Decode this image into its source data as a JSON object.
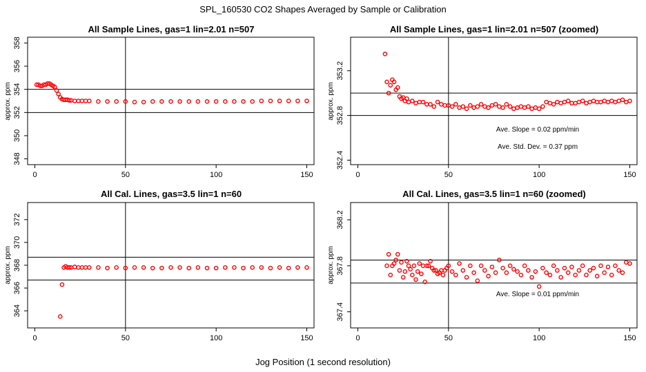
{
  "figure": {
    "title": "SPL_160530  CO2 Shapes Averaged by Sample or Calibration",
    "xlabel": "Jog Position (1 second resolution)"
  },
  "chart_data": [
    {
      "type": "scatter",
      "title": "All Sample Lines, gas=1 lin=2.01 n=507",
      "xlabel": "",
      "ylabel": "approx. ppm",
      "xlim": [
        -4,
        154
      ],
      "ylim": [
        347.5,
        358.5
      ],
      "xticks": [
        0,
        50,
        100,
        150
      ],
      "yticks": [
        348,
        350,
        352,
        354,
        356,
        358
      ],
      "vline": 50,
      "hlines": [
        354.0,
        352.0
      ],
      "annotations": [],
      "series": [
        {
          "color": "#ff0000",
          "x": [
            1,
            2,
            3,
            4,
            5,
            6,
            7,
            8,
            9,
            10,
            11,
            12,
            13,
            14,
            15,
            16,
            17,
            18,
            19,
            20,
            22,
            24,
            26,
            28,
            30,
            35,
            40,
            45,
            50,
            55,
            60,
            65,
            70,
            75,
            80,
            85,
            90,
            95,
            100,
            105,
            110,
            115,
            120,
            125,
            130,
            135,
            140,
            145,
            150
          ],
          "y": [
            354.4,
            354.4,
            354.3,
            354.3,
            354.4,
            354.4,
            354.5,
            354.5,
            354.4,
            354.3,
            354.2,
            353.9,
            353.6,
            353.3,
            353.15,
            353.1,
            353.1,
            353.1,
            353.05,
            353.05,
            353.0,
            353.0,
            353.0,
            353.0,
            353.0,
            352.95,
            352.95,
            352.95,
            352.95,
            352.9,
            352.9,
            352.95,
            352.95,
            352.95,
            352.95,
            352.95,
            352.95,
            352.95,
            352.95,
            352.95,
            352.95,
            352.95,
            352.95,
            353.0,
            353.0,
            353.0,
            353.0,
            353.0,
            353.0
          ]
        }
      ]
    },
    {
      "type": "scatter",
      "title": "All Sample Lines, gas=1 lin=2.01 n=507 (zoomed)",
      "xlabel": "",
      "ylabel": "approx. ppm",
      "xlim": [
        -4,
        154
      ],
      "ylim": [
        352.36,
        353.5
      ],
      "xticks": [
        0,
        50,
        100,
        150
      ],
      "yticks": [
        352.4,
        352.8,
        353.2
      ],
      "vline": 50,
      "hlines": [
        353.0,
        352.8
      ],
      "annotations": [
        "Ave. Slope =  0.02  ppm/min",
        "Ave. Std. Dev. =  0.37  ppm"
      ],
      "series": [
        {
          "color": "#ff0000",
          "x": [
            15,
            16,
            17,
            18,
            19,
            20,
            21,
            22,
            23,
            24,
            25,
            26,
            27,
            28,
            30,
            32,
            34,
            36,
            38,
            40,
            42,
            44,
            46,
            48,
            50,
            52,
            54,
            56,
            58,
            60,
            62,
            64,
            66,
            68,
            70,
            72,
            74,
            76,
            78,
            80,
            82,
            84,
            86,
            88,
            90,
            92,
            94,
            96,
            98,
            100,
            102,
            104,
            106,
            108,
            110,
            112,
            114,
            116,
            118,
            120,
            122,
            124,
            126,
            128,
            130,
            132,
            134,
            136,
            138,
            140,
            142,
            144,
            146,
            148,
            150
          ],
          "y": [
            353.35,
            353.1,
            353.0,
            353.07,
            353.12,
            353.1,
            353.03,
            353.05,
            352.97,
            352.95,
            352.96,
            352.93,
            352.95,
            352.92,
            352.93,
            352.91,
            352.92,
            352.92,
            352.9,
            352.9,
            352.88,
            352.92,
            352.9,
            352.89,
            352.89,
            352.88,
            352.9,
            352.87,
            352.88,
            352.86,
            352.89,
            352.87,
            352.88,
            352.9,
            352.88,
            352.87,
            352.89,
            352.9,
            352.88,
            352.87,
            352.9,
            352.88,
            352.86,
            352.87,
            352.88,
            352.87,
            352.88,
            352.86,
            352.87,
            352.86,
            352.88,
            352.92,
            352.91,
            352.9,
            352.92,
            352.91,
            352.92,
            352.93,
            352.91,
            352.91,
            352.92,
            352.93,
            352.91,
            352.92,
            352.93,
            352.92,
            352.92,
            352.93,
            352.92,
            352.93,
            352.92,
            352.93,
            352.94,
            352.92,
            352.93
          ]
        }
      ]
    },
    {
      "type": "scatter",
      "title": "All Cal. Lines, gas=3.5 lin=1 n=60",
      "xlabel": "",
      "ylabel": "approx. ppm",
      "xlim": [
        -4,
        154
      ],
      "ylim": [
        362.5,
        373.5
      ],
      "xticks": [
        0,
        50,
        100,
        150
      ],
      "yticks": [
        364,
        366,
        368,
        370,
        372
      ],
      "vline": 50,
      "hlines": [
        368.7,
        366.7
      ],
      "annotations": [],
      "series": [
        {
          "color": "#ff0000",
          "x": [
            14,
            15,
            16,
            17,
            18,
            19,
            20,
            22,
            24,
            26,
            28,
            30,
            35,
            40,
            45,
            50,
            55,
            60,
            65,
            70,
            75,
            80,
            85,
            90,
            95,
            100,
            105,
            110,
            115,
            120,
            125,
            130,
            135,
            140,
            145,
            150
          ],
          "y": [
            363.5,
            366.3,
            367.8,
            367.9,
            367.8,
            367.8,
            367.8,
            367.85,
            367.8,
            367.8,
            367.8,
            367.8,
            367.8,
            367.75,
            367.8,
            367.75,
            367.8,
            367.8,
            367.75,
            367.75,
            367.8,
            367.8,
            367.75,
            367.8,
            367.75,
            367.75,
            367.8,
            367.8,
            367.75,
            367.8,
            367.8,
            367.75,
            367.8,
            367.75,
            367.8,
            367.8
          ]
        }
      ]
    },
    {
      "type": "scatter",
      "title": "All Cal. Lines, gas=3.5 lin=1 n=60 (zoomed)",
      "xlabel": "",
      "ylabel": "approx. ppm",
      "xlim": [
        -4,
        154
      ],
      "ylim": [
        367.26,
        368.35
      ],
      "xticks": [
        0,
        50,
        100,
        150
      ],
      "yticks": [
        367.4,
        367.8,
        368.2
      ],
      "vline": 50,
      "hlines": [
        367.85,
        367.65
      ],
      "annotations": [
        "Ave. Slope =  0.01  ppm/min"
      ],
      "series": [
        {
          "color": "#ff0000",
          "x": [
            16,
            17,
            18,
            19,
            20,
            21,
            22,
            23,
            24,
            25,
            26,
            27,
            28,
            29,
            30,
            31,
            32,
            33,
            34,
            35,
            36,
            37,
            38,
            39,
            40,
            41,
            42,
            43,
            44,
            45,
            46,
            47,
            48,
            49,
            50,
            52,
            54,
            56,
            58,
            60,
            62,
            64,
            66,
            68,
            70,
            72,
            74,
            76,
            78,
            80,
            82,
            84,
            86,
            88,
            90,
            92,
            94,
            96,
            98,
            100,
            102,
            104,
            106,
            108,
            110,
            112,
            114,
            116,
            118,
            120,
            122,
            124,
            126,
            128,
            130,
            132,
            134,
            136,
            138,
            140,
            142,
            144,
            146,
            148,
            150
          ],
          "y": [
            367.8,
            367.9,
            367.72,
            367.8,
            367.82,
            367.85,
            367.9,
            367.76,
            367.83,
            367.7,
            367.75,
            367.84,
            367.8,
            367.77,
            367.72,
            367.8,
            367.68,
            367.75,
            367.82,
            367.73,
            367.8,
            367.66,
            367.8,
            367.8,
            367.84,
            367.78,
            367.76,
            367.76,
            367.73,
            367.74,
            367.76,
            367.72,
            367.76,
            367.78,
            367.8,
            367.75,
            367.72,
            367.82,
            367.76,
            367.7,
            367.8,
            367.74,
            367.67,
            367.8,
            367.76,
            367.71,
            367.79,
            367.74,
            367.85,
            367.78,
            367.74,
            367.8,
            367.77,
            367.75,
            367.72,
            367.8,
            367.76,
            367.7,
            367.75,
            367.62,
            367.78,
            367.74,
            367.72,
            367.8,
            367.76,
            367.7,
            367.78,
            367.74,
            367.79,
            367.72,
            367.76,
            367.8,
            367.72,
            367.76,
            367.78,
            367.71,
            367.8,
            367.74,
            367.79,
            367.72,
            367.8,
            367.76,
            367.74,
            367.83,
            367.82
          ]
        }
      ]
    }
  ]
}
